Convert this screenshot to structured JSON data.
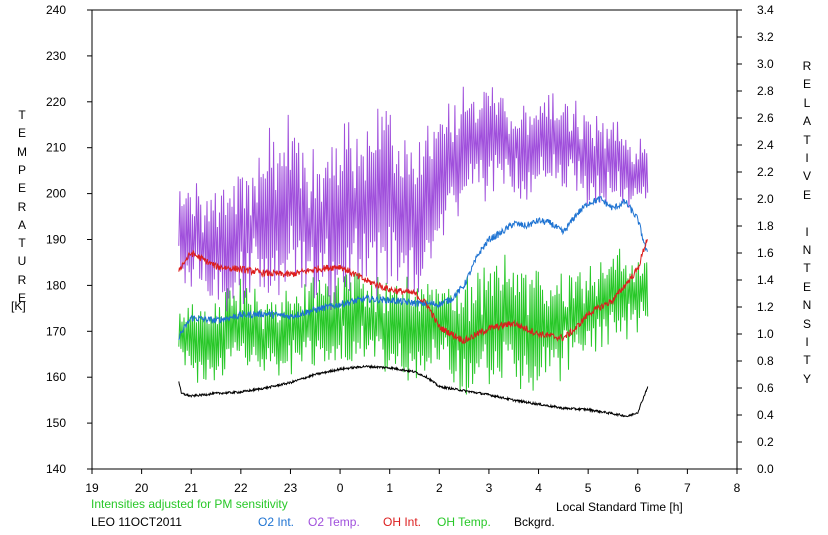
{
  "chart_data": {
    "type": "line",
    "left_axis": {
      "label_letters": [
        "T",
        "E",
        "M",
        "P",
        "E",
        "R",
        "A",
        "T",
        "U",
        "R",
        "E"
      ],
      "unit": "[K]",
      "range": [
        140,
        240
      ],
      "ticks": [
        140,
        150,
        160,
        170,
        180,
        190,
        200,
        210,
        220,
        230,
        240
      ]
    },
    "right_axis": {
      "label_letters": [
        "R",
        "E",
        "L",
        "A",
        "T",
        "I",
        "V",
        "E",
        "",
        "I",
        "N",
        "T",
        "E",
        "N",
        "S",
        "I",
        "T",
        "Y"
      ],
      "range": [
        0.0,
        3.4
      ],
      "ticks": [
        "0.0",
        "0.2",
        "0.4",
        "0.6",
        "0.8",
        "1.0",
        "1.2",
        "1.4",
        "1.6",
        "1.8",
        "2.0",
        "2.2",
        "2.4",
        "2.6",
        "2.8",
        "3.0",
        "3.2",
        "3.4"
      ]
    },
    "x_axis": {
      "label": "Local Standard Time [h]",
      "range": [
        19,
        32
      ],
      "tick_labels": [
        "19",
        "20",
        "21",
        "22",
        "23",
        "0",
        "1",
        "2",
        "3",
        "4",
        "5",
        "6",
        "7",
        "8"
      ]
    },
    "note": "Intensities adjusted for PM sensitivity",
    "station_date": "LEO 11OCT2011",
    "series": [
      {
        "name": "O2 Int.",
        "color": "#1e73d2",
        "axis": "right",
        "x": [
          20.75,
          21,
          21.5,
          22,
          22.5,
          23,
          23.5,
          24,
          24.5,
          25,
          25.5,
          26,
          26.25,
          26.5,
          26.8,
          27,
          27.25,
          27.5,
          27.75,
          28,
          28.25,
          28.5,
          28.75,
          29,
          29.25,
          29.5,
          29.75,
          30,
          30.2
        ],
        "values": [
          0.98,
          1.12,
          1.1,
          1.14,
          1.15,
          1.13,
          1.18,
          1.22,
          1.26,
          1.25,
          1.23,
          1.22,
          1.26,
          1.36,
          1.6,
          1.7,
          1.75,
          1.82,
          1.8,
          1.84,
          1.82,
          1.75,
          1.88,
          1.97,
          2.0,
          1.93,
          1.98,
          1.85,
          1.58
        ]
      },
      {
        "name": "O2 Temp.",
        "color": "#a050dc",
        "axis": "left",
        "x": [
          20.75,
          21,
          21.5,
          22,
          22.5,
          23,
          23.5,
          24,
          24.5,
          25,
          25.5,
          26,
          26.5,
          27,
          27.5,
          28,
          28.5,
          29,
          29.5,
          30,
          30.2
        ],
        "values": [
          193,
          190,
          188,
          190,
          195,
          198,
          192,
          195,
          198,
          198,
          195,
          203,
          210,
          213,
          210,
          210,
          212,
          207,
          207,
          203,
          205
        ],
        "amplitude": [
          8,
          12,
          14,
          15,
          16,
          18,
          16,
          18,
          20,
          18,
          16,
          14,
          12,
          12,
          10,
          10,
          10,
          10,
          9,
          8,
          6
        ]
      },
      {
        "name": "OH Int.",
        "color": "#dc1e1e",
        "axis": "right",
        "x": [
          20.75,
          21,
          21.5,
          22,
          22.5,
          23,
          23.5,
          24,
          24.5,
          25,
          25.5,
          25.75,
          26,
          26.5,
          27,
          27.5,
          28,
          28.5,
          28.75,
          29,
          29.5,
          30,
          30.2
        ],
        "values": [
          1.48,
          1.6,
          1.5,
          1.48,
          1.45,
          1.44,
          1.48,
          1.5,
          1.4,
          1.33,
          1.3,
          1.22,
          1.05,
          0.95,
          1.04,
          1.08,
          1.0,
          0.97,
          1.04,
          1.15,
          1.25,
          1.48,
          1.72
        ]
      },
      {
        "name": "OH Temp.",
        "color": "#28c828",
        "axis": "left",
        "x": [
          20.75,
          21,
          21.5,
          22,
          22.5,
          23,
          23.5,
          24,
          24.5,
          25,
          25.5,
          26,
          26.5,
          27,
          27.5,
          28,
          28.5,
          29,
          29.5,
          30,
          30.2
        ],
        "values": [
          170,
          167,
          168,
          172,
          168,
          170,
          172,
          173,
          173,
          172,
          170,
          172,
          168,
          172,
          172,
          170,
          172,
          175,
          178,
          178,
          178
        ],
        "amplitude": [
          4,
          8,
          10,
          9,
          9,
          8,
          10,
          10,
          10,
          10,
          10,
          9,
          12,
          12,
          14,
          12,
          12,
          10,
          10,
          9,
          6
        ]
      },
      {
        "name": "Bckgrd.",
        "color": "#000000",
        "axis": "right",
        "x": [
          20.75,
          20.8,
          21,
          21.5,
          22,
          22.5,
          23,
          23.5,
          24,
          24.5,
          25,
          25.5,
          25.75,
          26,
          26.5,
          27,
          27.5,
          28,
          28.5,
          29,
          29.5,
          29.8,
          30,
          30.2
        ],
        "values": [
          0.65,
          0.56,
          0.54,
          0.56,
          0.57,
          0.6,
          0.64,
          0.7,
          0.74,
          0.76,
          0.75,
          0.72,
          0.68,
          0.61,
          0.58,
          0.55,
          0.51,
          0.48,
          0.45,
          0.44,
          0.41,
          0.39,
          0.42,
          0.61
        ]
      }
    ]
  }
}
